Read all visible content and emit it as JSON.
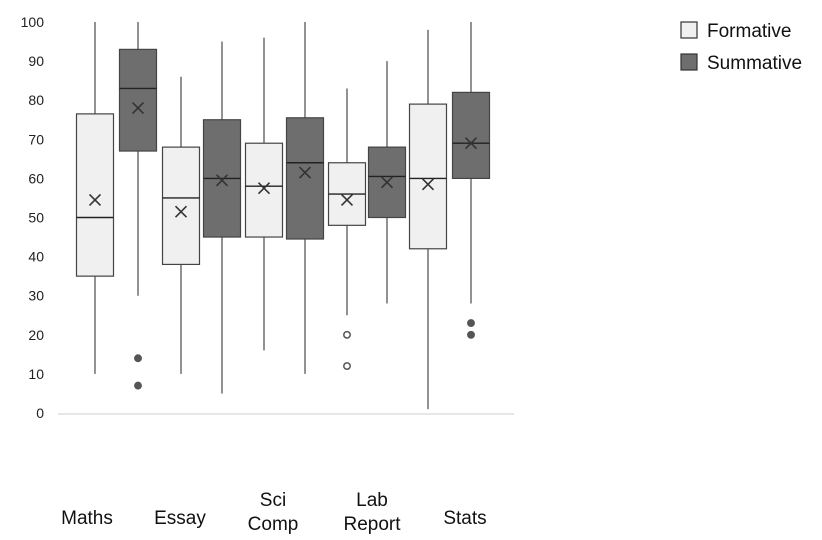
{
  "chart_data": {
    "type": "boxplot",
    "ylim": [
      0,
      100
    ],
    "yticks": [
      0,
      10,
      20,
      30,
      40,
      50,
      60,
      70,
      80,
      90,
      100
    ],
    "categories": [
      [
        "Maths"
      ],
      [
        "Essay"
      ],
      [
        "Sci",
        "Comp"
      ],
      [
        "Lab",
        "Report"
      ],
      [
        "Stats"
      ]
    ],
    "legend": {
      "position": "top-right"
    },
    "series": [
      {
        "name": "Formative",
        "color": "#f0f0f0",
        "boxes": [
          {
            "min": 10,
            "q1": 35,
            "median": 50,
            "q3": 76.5,
            "max": 100,
            "mean": 54.5,
            "outliers": []
          },
          {
            "min": 10,
            "q1": 38,
            "median": 55,
            "q3": 68,
            "max": 86,
            "mean": 51.5,
            "outliers": []
          },
          {
            "min": 16,
            "q1": 45,
            "median": 58,
            "q3": 69,
            "max": 96,
            "mean": 57.5,
            "outliers": []
          },
          {
            "min": 25,
            "q1": 48,
            "median": 56,
            "q3": 64,
            "max": 83,
            "mean": 54.5,
            "outliers": [
              12,
              20
            ]
          },
          {
            "min": 1,
            "q1": 42,
            "median": 60,
            "q3": 79,
            "max": 98,
            "mean": 58.5,
            "outliers": []
          }
        ]
      },
      {
        "name": "Summative",
        "color": "#6e6e6e",
        "boxes": [
          {
            "min": 30,
            "q1": 67,
            "median": 83,
            "q3": 93,
            "max": 100,
            "mean": 78,
            "outliers": [
              7,
              14
            ]
          },
          {
            "min": 5,
            "q1": 45,
            "median": 60,
            "q3": 75,
            "max": 95,
            "mean": 59.5,
            "outliers": []
          },
          {
            "min": 10,
            "q1": 44.5,
            "median": 64,
            "q3": 75.5,
            "max": 100,
            "mean": 61.5,
            "outliers": []
          },
          {
            "min": 28,
            "q1": 50,
            "median": 60.5,
            "q3": 68,
            "max": 90,
            "mean": 59,
            "outliers": []
          },
          {
            "min": 28,
            "q1": 60,
            "median": 69,
            "q3": 82,
            "max": 100,
            "mean": 69,
            "outliers": [
              20,
              23
            ]
          }
        ]
      }
    ]
  }
}
